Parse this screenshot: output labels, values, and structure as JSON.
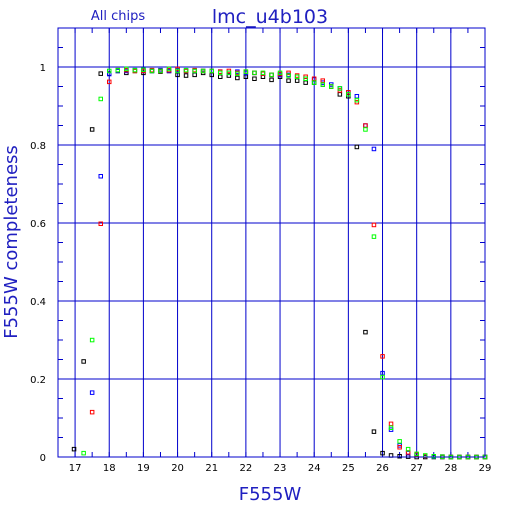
{
  "chart_data": {
    "type": "scatter",
    "title": "lmc_u4b103",
    "subtitle": "All chips",
    "xlabel": "F555W",
    "ylabel": "F555W completeness",
    "xlim": [
      16.5,
      29.0
    ],
    "ylim": [
      0,
      1.1
    ],
    "xticks": [
      "17",
      "18",
      "19",
      "20",
      "21",
      "22",
      "23",
      "24",
      "25",
      "26",
      "27",
      "28",
      "29"
    ],
    "yticks": [
      "0",
      "0.2",
      "0.4",
      "0.6",
      "0.8",
      "1"
    ],
    "grid": true,
    "marker": "open-square",
    "colors": {
      "frame": "#0000cc",
      "title": "#2020c0",
      "tick_labels": "#000000"
    },
    "series": [
      {
        "color": "#000000",
        "x": [
          16.97,
          17.25,
          17.5,
          17.75,
          18.0,
          18.25,
          18.5,
          18.75,
          19.0,
          19.25,
          19.5,
          19.75,
          20.0,
          20.25,
          20.5,
          20.75,
          21.0,
          21.25,
          21.5,
          21.75,
          22.0,
          22.25,
          22.5,
          22.75,
          23.0,
          23.25,
          23.5,
          23.75,
          24.0,
          24.25,
          24.5,
          24.75,
          25.0,
          25.25,
          25.5,
          25.75,
          26.0,
          26.25,
          26.5,
          26.75,
          27.0,
          27.25,
          27.5,
          27.75,
          28.0,
          28.25,
          28.5,
          28.75,
          29.0
        ],
        "y": [
          0.02,
          0.245,
          0.84,
          0.983,
          0.983,
          0.99,
          0.985,
          0.99,
          0.985,
          0.99,
          0.988,
          0.99,
          0.98,
          0.978,
          0.98,
          0.985,
          0.98,
          0.975,
          0.978,
          0.972,
          0.975,
          0.97,
          0.975,
          0.967,
          0.975,
          0.965,
          0.965,
          0.96,
          0.96,
          0.955,
          0.95,
          0.93,
          0.925,
          0.795,
          0.32,
          0.065,
          0.01,
          0.004,
          0.002,
          0.001,
          0.0,
          0.0,
          0.0,
          0.0,
          0.0,
          0.0,
          0.0,
          0.0,
          0.0
        ]
      },
      {
        "color": "#0000ff",
        "x": [
          17.5,
          17.75,
          18.0,
          18.25,
          18.5,
          18.75,
          19.0,
          19.25,
          19.5,
          19.75,
          20.0,
          20.25,
          20.5,
          20.75,
          21.0,
          21.25,
          21.5,
          21.75,
          22.0,
          22.25,
          22.5,
          22.75,
          23.0,
          23.25,
          23.5,
          23.75,
          24.0,
          24.25,
          24.5,
          24.75,
          25.0,
          25.25,
          25.5,
          25.75,
          26.0,
          26.25,
          26.5,
          26.75,
          27.0,
          27.25,
          27.5,
          27.75,
          28.0,
          28.25,
          28.5,
          28.75,
          29.0
        ],
        "y": [
          0.165,
          0.72,
          0.982,
          0.99,
          0.99,
          0.992,
          0.992,
          0.99,
          0.992,
          0.99,
          0.992,
          0.99,
          0.99,
          0.99,
          0.99,
          0.988,
          0.985,
          0.988,
          0.985,
          0.985,
          0.983,
          0.98,
          0.98,
          0.98,
          0.975,
          0.97,
          0.968,
          0.96,
          0.955,
          0.945,
          0.935,
          0.925,
          0.85,
          0.79,
          0.215,
          0.07,
          0.03,
          0.01,
          0.005,
          0.003,
          0.001,
          0.001,
          0.0,
          0.0,
          0.0,
          0.0,
          0.0
        ]
      },
      {
        "color": "#ff0000",
        "x": [
          17.5,
          17.75,
          18.0,
          18.25,
          18.5,
          18.75,
          19.0,
          19.25,
          19.5,
          19.75,
          20.0,
          20.25,
          20.5,
          20.75,
          21.0,
          21.25,
          21.5,
          21.75,
          22.0,
          22.25,
          22.5,
          22.75,
          23.0,
          23.25,
          23.5,
          23.75,
          24.0,
          24.25,
          24.5,
          24.75,
          25.0,
          25.25,
          25.5,
          25.75,
          26.0,
          26.25,
          26.5,
          26.75,
          27.0,
          27.25,
          27.5,
          27.75,
          28.0,
          28.25,
          28.5,
          28.75,
          29.0
        ],
        "y": [
          0.115,
          0.598,
          0.962,
          0.992,
          0.992,
          0.99,
          0.99,
          0.992,
          0.99,
          0.992,
          0.995,
          0.99,
          0.992,
          0.99,
          0.99,
          0.988,
          0.99,
          0.985,
          0.988,
          0.985,
          0.983,
          0.98,
          0.982,
          0.985,
          0.978,
          0.975,
          0.97,
          0.965,
          0.95,
          0.94,
          0.935,
          0.91,
          0.85,
          0.595,
          0.258,
          0.085,
          0.025,
          0.012,
          0.006,
          0.003,
          0.002,
          0.001,
          0.0,
          0.0,
          0.0,
          0.0,
          0.0
        ]
      },
      {
        "color": "#00ff00",
        "x": [
          17.25,
          17.5,
          17.75,
          18.0,
          18.25,
          18.5,
          18.75,
          19.0,
          19.25,
          19.5,
          19.75,
          20.0,
          20.25,
          20.5,
          20.75,
          21.0,
          21.25,
          21.5,
          21.75,
          22.0,
          22.25,
          22.5,
          22.75,
          23.0,
          23.25,
          23.5,
          23.75,
          24.0,
          24.25,
          24.5,
          24.75,
          25.0,
          25.25,
          25.5,
          25.75,
          26.0,
          26.25,
          26.5,
          26.75,
          27.0,
          27.25,
          27.5,
          27.75,
          28.0,
          28.25,
          28.5,
          28.75,
          29.0
        ],
        "y": [
          0.01,
          0.3,
          0.918,
          0.99,
          0.992,
          0.995,
          0.992,
          0.993,
          0.99,
          0.99,
          0.995,
          0.99,
          0.992,
          0.99,
          0.99,
          0.99,
          0.985,
          0.985,
          0.983,
          0.988,
          0.985,
          0.985,
          0.98,
          0.985,
          0.978,
          0.975,
          0.97,
          0.96,
          0.955,
          0.95,
          0.945,
          0.93,
          0.915,
          0.84,
          0.565,
          0.205,
          0.075,
          0.04,
          0.02,
          0.008,
          0.004,
          0.002,
          0.001,
          0.0,
          0.0,
          0.0,
          0.0,
          0.0
        ]
      }
    ]
  }
}
